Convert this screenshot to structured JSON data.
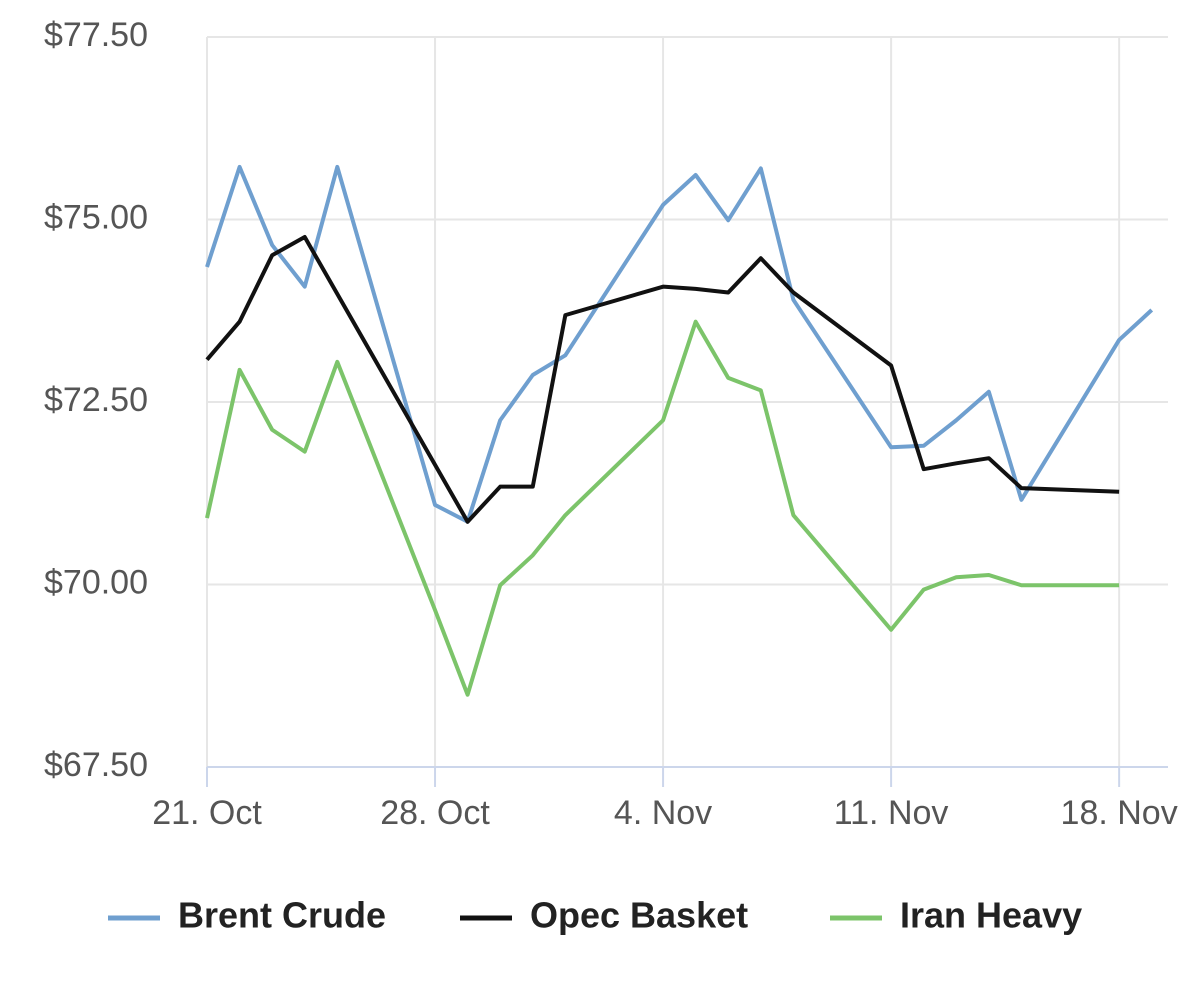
{
  "chart_data": {
    "type": "line",
    "xlim": [
      0,
      29.5
    ],
    "xticks": [
      {
        "value": 0,
        "label": "21. Oct"
      },
      {
        "value": 7,
        "label": "28. Oct"
      },
      {
        "value": 14,
        "label": "4. Nov"
      },
      {
        "value": 21,
        "label": "11. Nov"
      },
      {
        "value": 28,
        "label": "18. Nov"
      }
    ],
    "ylim": [
      67.5,
      77.5
    ],
    "yticks": [
      {
        "value": 67.5,
        "label": "$67.50"
      },
      {
        "value": 70,
        "label": "$70.00"
      },
      {
        "value": 72.5,
        "label": "$72.50"
      },
      {
        "value": 75,
        "label": "$75.00"
      },
      {
        "value": 77.5,
        "label": "$77.50"
      }
    ],
    "grid": true,
    "legend": "bottom",
    "series": [
      {
        "name": "Brent Crude",
        "color": "#6f9fcf",
        "x": [
          0,
          1,
          2,
          3,
          4,
          7,
          8,
          9,
          10,
          11,
          14,
          15,
          16,
          17,
          18,
          21,
          22,
          23,
          24,
          25,
          28,
          29
        ],
        "values": [
          74.35,
          75.72,
          74.65,
          74.08,
          75.72,
          71.09,
          70.86,
          72.25,
          72.87,
          73.14,
          75.2,
          75.61,
          74.99,
          75.7,
          73.9,
          71.88,
          71.9,
          72.25,
          72.64,
          71.16,
          73.35,
          73.76
        ]
      },
      {
        "name": "Opec Basket",
        "color": "#111111",
        "x": [
          0,
          1,
          2,
          3,
          8,
          9,
          10,
          11,
          14,
          15,
          16,
          17,
          18,
          21,
          22,
          23,
          24,
          25,
          28
        ],
        "values": [
          73.08,
          73.6,
          74.51,
          74.76,
          70.86,
          71.34,
          71.34,
          73.69,
          74.08,
          74.05,
          74.0,
          74.47,
          74.0,
          73.0,
          71.58,
          71.66,
          71.73,
          71.32,
          71.27
        ]
      },
      {
        "name": "Iran Heavy",
        "color": "#7cc46a",
        "x": [
          0,
          1,
          2,
          3,
          4,
          7,
          8,
          9,
          10,
          11,
          14,
          15,
          16,
          17,
          18,
          21,
          22,
          23,
          24,
          25,
          28
        ],
        "values": [
          70.91,
          72.94,
          72.12,
          71.82,
          73.05,
          69.65,
          68.49,
          69.99,
          70.4,
          70.95,
          72.25,
          73.6,
          72.83,
          72.66,
          70.95,
          69.38,
          69.93,
          70.1,
          70.13,
          69.99,
          69.99
        ]
      }
    ]
  }
}
